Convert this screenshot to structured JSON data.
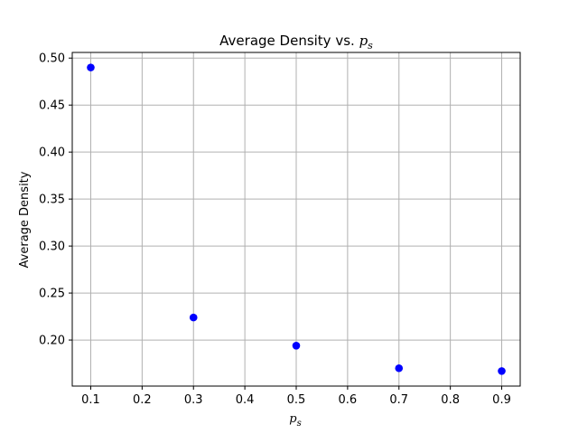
{
  "chart_data": {
    "type": "scatter",
    "title": "Average Density vs. ",
    "title_math": {
      "base": "p",
      "sub": "s"
    },
    "xlabel_math": {
      "base": "p",
      "sub": "s"
    },
    "ylabel": "Average Density",
    "xlim": [
      0.064,
      0.936
    ],
    "ylim": [
      0.151,
      0.506
    ],
    "xticks": [
      0.1,
      0.2,
      0.3,
      0.4,
      0.5,
      0.6,
      0.7,
      0.8,
      0.9
    ],
    "xtick_labels": [
      "0.1",
      "0.2",
      "0.3",
      "0.4",
      "0.5",
      "0.6",
      "0.7",
      "0.8",
      "0.9"
    ],
    "yticks": [
      0.2,
      0.25,
      0.3,
      0.35,
      0.4,
      0.45,
      0.5
    ],
    "ytick_labels": [
      "0.20",
      "0.25",
      "0.30",
      "0.35",
      "0.40",
      "0.45",
      "0.50"
    ],
    "grid": true,
    "marker_color": "#0000ff",
    "grid_color": "#b0b0b0",
    "points": [
      {
        "x": 0.1,
        "y": 0.49
      },
      {
        "x": 0.3,
        "y": 0.224
      },
      {
        "x": 0.5,
        "y": 0.194
      },
      {
        "x": 0.7,
        "y": 0.17
      },
      {
        "x": 0.9,
        "y": 0.167
      }
    ]
  }
}
